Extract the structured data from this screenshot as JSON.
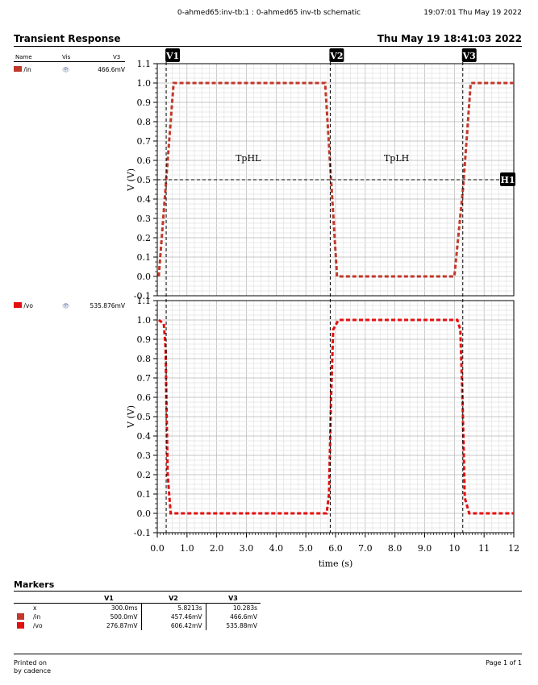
{
  "header": {
    "session": "0-ahmed65:inv-tb:1 : 0-ahmed65 inv-tb schematic",
    "timestamp": "19:07:01  Thu May 19 2022"
  },
  "title": "Transient Response",
  "date": "Thu May 19 18:41:03 2022",
  "legend": {
    "col_name": "Name",
    "col_vis": "Vis",
    "col_marker": "V3",
    "eye_icon": "eye-icon",
    "signals": [
      {
        "name": "/in",
        "value": "466.6mV",
        "color": "#c0392b"
      },
      {
        "name": "/vo",
        "value": "535.876mV",
        "color": "#e31010"
      }
    ]
  },
  "chart_data": {
    "type": "line",
    "xlabel": "time (s)",
    "xlim": [
      0,
      12
    ],
    "x_ticks": [
      "0.0",
      "1.0",
      "2.0",
      "3.0",
      "4.0",
      "5.0",
      "6.0",
      "7.0",
      "8.0",
      "9.0",
      "10",
      "11",
      "12"
    ],
    "y_ticks": [
      "-0.1",
      "0.0",
      "0.1",
      "0.2",
      "0.3",
      "0.4",
      "0.5",
      "0.6",
      "0.7",
      "0.8",
      "0.9",
      "1.0",
      "1.1"
    ],
    "grid": true,
    "panels": [
      {
        "ylabel": "V (V)",
        "ylim": [
          -0.1,
          1.1
        ],
        "series": [
          {
            "name": "/in",
            "color": "#c0392b",
            "x": [
              0.05,
              0.3,
              0.55,
              5.65,
              5.85,
              6.05,
              10.0,
              10.3,
              10.55,
              12.0
            ],
            "y": [
              0.0,
              0.5,
              1.0,
              1.0,
              0.5,
              0.0,
              0.0,
              0.47,
              1.0,
              1.0
            ]
          }
        ],
        "annotations": [
          "TpHL",
          "TpLH"
        ]
      },
      {
        "ylabel": "V (V)",
        "ylim": [
          -0.1,
          1.1
        ],
        "series": [
          {
            "name": "/vo",
            "color": "#e31010",
            "x": [
              0.05,
              0.22,
              0.28,
              0.35,
              0.45,
              5.7,
              5.78,
              5.85,
              5.92,
              6.1,
              10.1,
              10.2,
              10.28,
              10.35,
              10.5,
              12.0
            ],
            "y": [
              1.0,
              0.98,
              0.85,
              0.2,
              0.0,
              0.0,
              0.1,
              0.6,
              0.95,
              1.0,
              1.0,
              0.95,
              0.55,
              0.08,
              0.0,
              0.0
            ]
          }
        ]
      }
    ],
    "vertical_markers": [
      {
        "label": "V1",
        "x": 0.3
      },
      {
        "label": "V2",
        "x": 5.8213
      },
      {
        "label": "V3",
        "x": 10.283
      }
    ],
    "horizontal_marker": {
      "label": "H1",
      "y": 0.5
    }
  },
  "markers": {
    "title": "Markers",
    "columns": [
      "V1",
      "V2",
      "V3"
    ],
    "rows": [
      {
        "name": "x",
        "color": "",
        "values": [
          "300.0ms",
          "5.8213s",
          "10.283s"
        ]
      },
      {
        "name": "/in",
        "color": "#c0392b",
        "values": [
          "500.0mV",
          "457.46mV",
          "466.6mV"
        ]
      },
      {
        "name": "/vo",
        "color": "#e31010",
        "values": [
          "276.87mV",
          "606.42mV",
          "535.88mV"
        ]
      }
    ]
  },
  "footer": {
    "printed_on": "Printed on",
    "printed_by": "by cadence",
    "page": "Page 1 of 1"
  }
}
